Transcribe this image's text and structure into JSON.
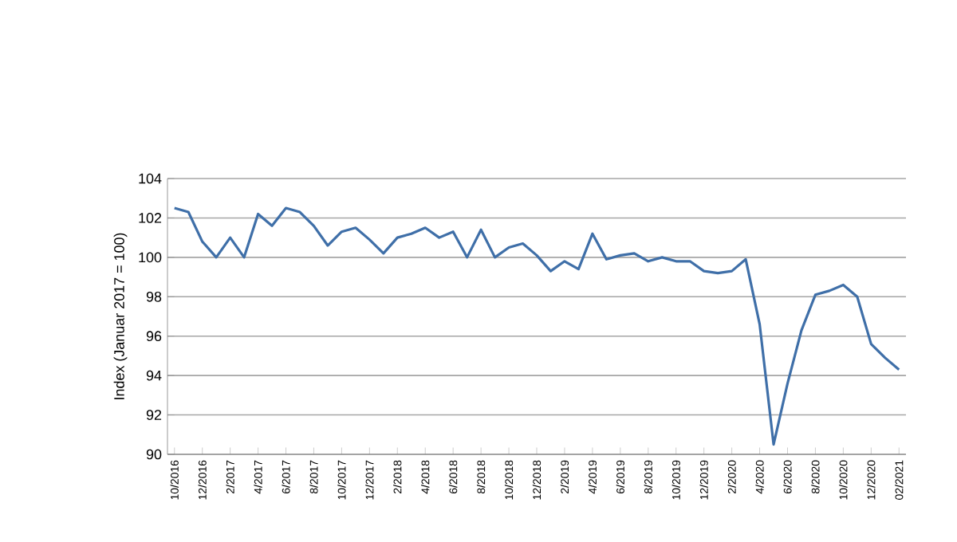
{
  "chart_data": {
    "type": "line",
    "ylabel": "Index (Januar 2017 = 100)",
    "categories": [
      "10/2016",
      null,
      "12/2016",
      null,
      "2/2017",
      null,
      "4/2017",
      null,
      "6/2017",
      null,
      "8/2017",
      null,
      "10/2017",
      null,
      "12/2017",
      null,
      "2/2018",
      null,
      "4/2018",
      null,
      "6/2018",
      null,
      "8/2018",
      null,
      "10/2018",
      null,
      "12/2018",
      null,
      "2/2019",
      null,
      "4/2019",
      null,
      "6/2019",
      null,
      "8/2019",
      null,
      "10/2019",
      null,
      "12/2019",
      null,
      "2/2020",
      null,
      "4/2020",
      null,
      "6/2020",
      null,
      "8/2020",
      null,
      "10/2020",
      null,
      "12/2020",
      null,
      "02/2021"
    ],
    "series": [
      {
        "color": "#3f6fa8",
        "values": [
          102.5,
          102.3,
          100.8,
          100.0,
          101.0,
          100.0,
          102.2,
          101.6,
          102.5,
          102.3,
          101.6,
          100.6,
          101.3,
          101.5,
          100.9,
          100.2,
          101.0,
          101.2,
          101.5,
          101.0,
          101.3,
          100.0,
          101.4,
          100.0,
          100.5,
          100.7,
          100.1,
          99.3,
          99.8,
          99.4,
          101.2,
          99.9,
          100.1,
          100.2,
          99.8,
          100.0,
          99.8,
          99.8,
          99.3,
          99.2,
          99.3,
          99.9,
          96.6,
          90.5,
          93.6,
          96.3,
          98.1,
          98.3,
          98.6,
          98.0,
          95.6,
          94.9,
          94.3
        ]
      }
    ],
    "ylim": [
      90,
      104
    ],
    "yticks": [
      90,
      92,
      94,
      96,
      98,
      100,
      102,
      104
    ],
    "grid": "y",
    "marker": "none",
    "line_style": "solid"
  }
}
